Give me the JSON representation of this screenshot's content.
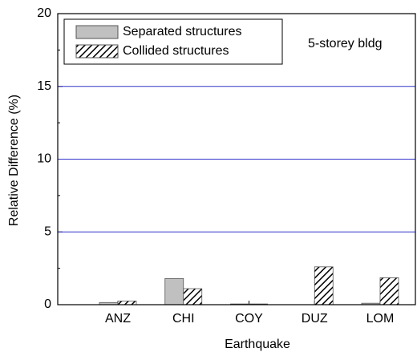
{
  "chart_data": {
    "type": "bar",
    "xlabel": "Earthquake",
    "ylabel": "Relative Difference (%)",
    "annotation": "5-storey bldg",
    "categories": [
      "ANZ",
      "CHI",
      "COY",
      "DUZ",
      "LOM"
    ],
    "series": [
      {
        "name": "Separated structures",
        "color": "#c0c0c0",
        "pattern": "solid",
        "values": [
          0.15,
          1.8,
          0.05,
          0,
          0.1
        ]
      },
      {
        "name": "Collided structures",
        "color": "#000000",
        "pattern": "hatch",
        "values": [
          0.25,
          1.1,
          0.05,
          2.6,
          1.85
        ]
      }
    ],
    "ylim": [
      0,
      20
    ],
    "yticks": [
      0,
      5,
      10,
      15,
      20
    ],
    "grid": true,
    "grid_color": "#3333cc",
    "legend": "upper left"
  }
}
